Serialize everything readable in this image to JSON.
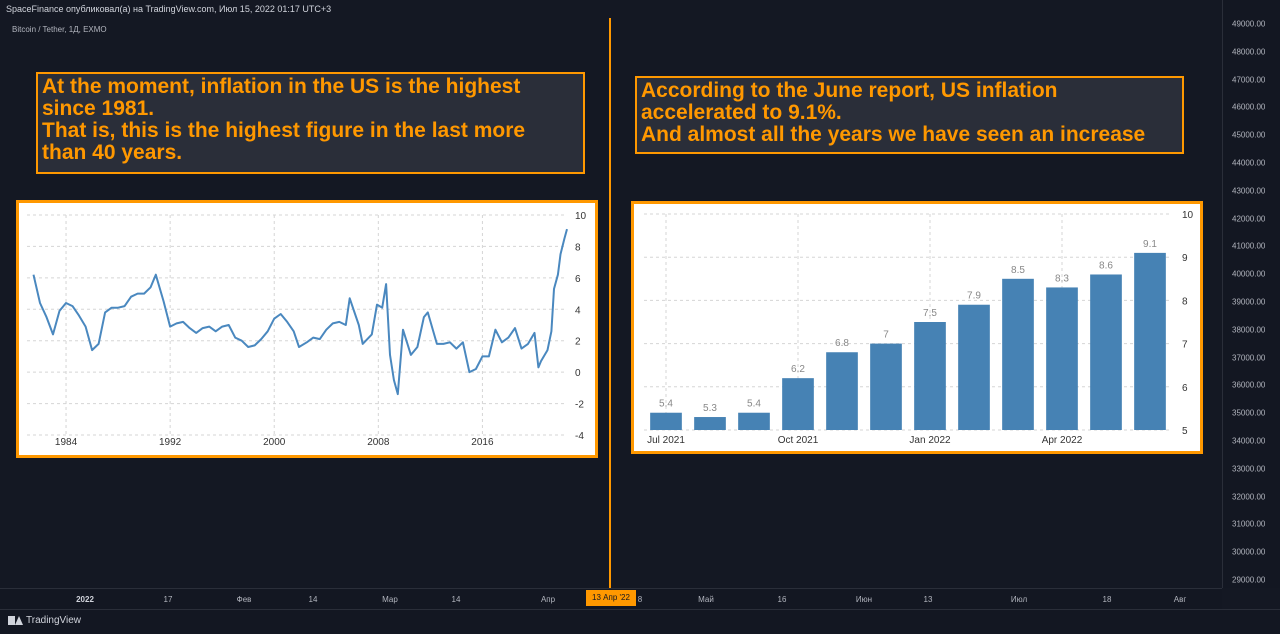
{
  "header": {
    "text": "SpaceFinance опубликовал(а) на TradingView.com, Июл 15, 2022 01:17 UTC+3"
  },
  "symbol": {
    "text": "Bitcoin / Tether, 1Д, EXMO"
  },
  "price_axis": {
    "ticks": [
      "49000.00",
      "48000.00",
      "47000.00",
      "46000.00",
      "45000.00",
      "44000.00",
      "43000.00",
      "42000.00",
      "41000.00",
      "40000.00",
      "39000.00",
      "38000.00",
      "37000.00",
      "36000.00",
      "35000.00",
      "34000.00",
      "33000.00",
      "32000.00",
      "31000.00",
      "30000.00",
      "29000.00"
    ]
  },
  "time_axis": {
    "ticks": [
      {
        "label": "2022",
        "bold": true
      },
      {
        "label": "17",
        "bold": false
      },
      {
        "label": "Фев",
        "bold": false
      },
      {
        "label": "14",
        "bold": false
      },
      {
        "label": "Мар",
        "bold": false
      },
      {
        "label": "14",
        "bold": false
      },
      {
        "label": "Апр",
        "bold": false
      },
      {
        "label": "8",
        "bold": false
      },
      {
        "label": "Май",
        "bold": false
      },
      {
        "label": "16",
        "bold": false
      },
      {
        "label": "Июн",
        "bold": false
      },
      {
        "label": "13",
        "bold": false
      },
      {
        "label": "Июл",
        "bold": false
      },
      {
        "label": "18",
        "bold": false
      },
      {
        "label": "Авг",
        "bold": false
      }
    ],
    "crosshair_date": "13 Апр '22"
  },
  "notes": {
    "left": "At the moment, inflation in the US is the highest\nsince 1981.\nThat is, this is the highest figure in the last more\nthan 40 years.",
    "right": "According to the June report, US inflation\naccelerated to 9.1%.\nAnd almost all the years we have seen an increase"
  },
  "footer": {
    "brand": "TradingView"
  },
  "colors": {
    "accent": "#ff9800",
    "background": "#141823",
    "line": "#4a88bf",
    "bar": "#4682b4"
  },
  "chart_data": [
    {
      "type": "line",
      "title": "",
      "xlabel": "",
      "ylabel": "",
      "xlim": [
        1981,
        2022.5
      ],
      "ylim": [
        -4,
        10
      ],
      "y_ticks": [
        10,
        8,
        6,
        4,
        2,
        0,
        -2,
        -4
      ],
      "x_ticks": [
        "1984",
        "1992",
        "2000",
        "2008",
        "2016"
      ],
      "grid": true,
      "series": [
        {
          "x": [
            1981.5,
            1982,
            1982.5,
            1983,
            1983.5,
            1984,
            1984.5,
            1985,
            1985.5,
            1986,
            1986.5,
            1987,
            1987.5,
            1988,
            1988.5,
            1989,
            1989.5,
            1990,
            1990.5,
            1990.9,
            1991.5,
            1992,
            1992.5,
            1993,
            1993.5,
            1994,
            1994.5,
            1995,
            1995.5,
            1996,
            1996.5,
            1997,
            1997.5,
            1998,
            1998.5,
            1999,
            1999.5,
            2000,
            2000.5,
            2001,
            2001.5,
            2001.9,
            2002.5,
            2003,
            2003.5,
            2004,
            2004.5,
            2005,
            2005.5,
            2005.8,
            2006.5,
            2006.8,
            2007.5,
            2007.9,
            2008.3,
            2008.6,
            2008.9,
            2009.2,
            2009.5,
            2009.9,
            2010.5,
            2011,
            2011.5,
            2011.8,
            2012.5,
            2013,
            2013.5,
            2014,
            2014.5,
            2015,
            2015.5,
            2016,
            2016.5,
            2017,
            2017.5,
            2018,
            2018.5,
            2019,
            2019.5,
            2020,
            2020.3,
            2020.5,
            2021,
            2021.3,
            2021.5,
            2021.8,
            2022,
            2022.3,
            2022.5
          ],
          "y": [
            6.2,
            4.4,
            3.5,
            2.4,
            3.9,
            4.4,
            4.2,
            3.6,
            2.9,
            1.4,
            1.8,
            3.8,
            4.1,
            4.1,
            4.2,
            4.8,
            5.0,
            5.0,
            5.4,
            6.2,
            4.5,
            2.9,
            3.1,
            3.2,
            2.8,
            2.5,
            2.8,
            2.9,
            2.6,
            2.9,
            3.0,
            2.2,
            2.0,
            1.6,
            1.7,
            2.1,
            2.6,
            3.4,
            3.7,
            3.2,
            2.6,
            1.6,
            1.9,
            2.2,
            2.1,
            2.7,
            3.1,
            3.2,
            3.0,
            4.7,
            3.0,
            1.8,
            2.4,
            4.3,
            4.1,
            5.6,
            1.1,
            -0.5,
            -1.4,
            2.7,
            1.1,
            1.6,
            3.5,
            3.8,
            1.8,
            1.8,
            1.9,
            1.5,
            1.9,
            0.0,
            0.2,
            1.0,
            1.0,
            2.7,
            1.9,
            2.2,
            2.8,
            1.5,
            1.8,
            2.5,
            0.3,
            0.7,
            1.4,
            2.6,
            5.3,
            6.2,
            7.5,
            8.5,
            9.1
          ]
        }
      ]
    },
    {
      "type": "bar",
      "title": "",
      "xlabel": "",
      "ylabel": "",
      "categories": [
        "Jul 2021",
        "Aug 2021",
        "Sep 2021",
        "Oct 2021",
        "Nov 2021",
        "Dec 2021",
        "Jan 2022",
        "Feb 2022",
        "Mar 2022",
        "Apr 2022",
        "May 2022",
        "Jun 2022"
      ],
      "values": [
        5.4,
        5.3,
        5.4,
        6.2,
        6.8,
        7.0,
        7.5,
        7.9,
        8.5,
        8.3,
        8.6,
        9.1
      ],
      "value_labels": [
        "5.4",
        "5.3",
        "5.4",
        "6.2",
        "6.8",
        "7",
        "7.5",
        "7.9",
        "8.5",
        "8.3",
        "8.6",
        "9.1"
      ],
      "x_tick_labels": [
        {
          "index": 0,
          "label": "Jul 2021"
        },
        {
          "index": 3,
          "label": "Oct 2021"
        },
        {
          "index": 6,
          "label": "Jan 2022"
        },
        {
          "index": 9,
          "label": "Apr 2022"
        }
      ],
      "ylim": [
        5,
        10
      ],
      "y_ticks": [
        10,
        9,
        8,
        7,
        6,
        5
      ],
      "grid": true
    }
  ]
}
